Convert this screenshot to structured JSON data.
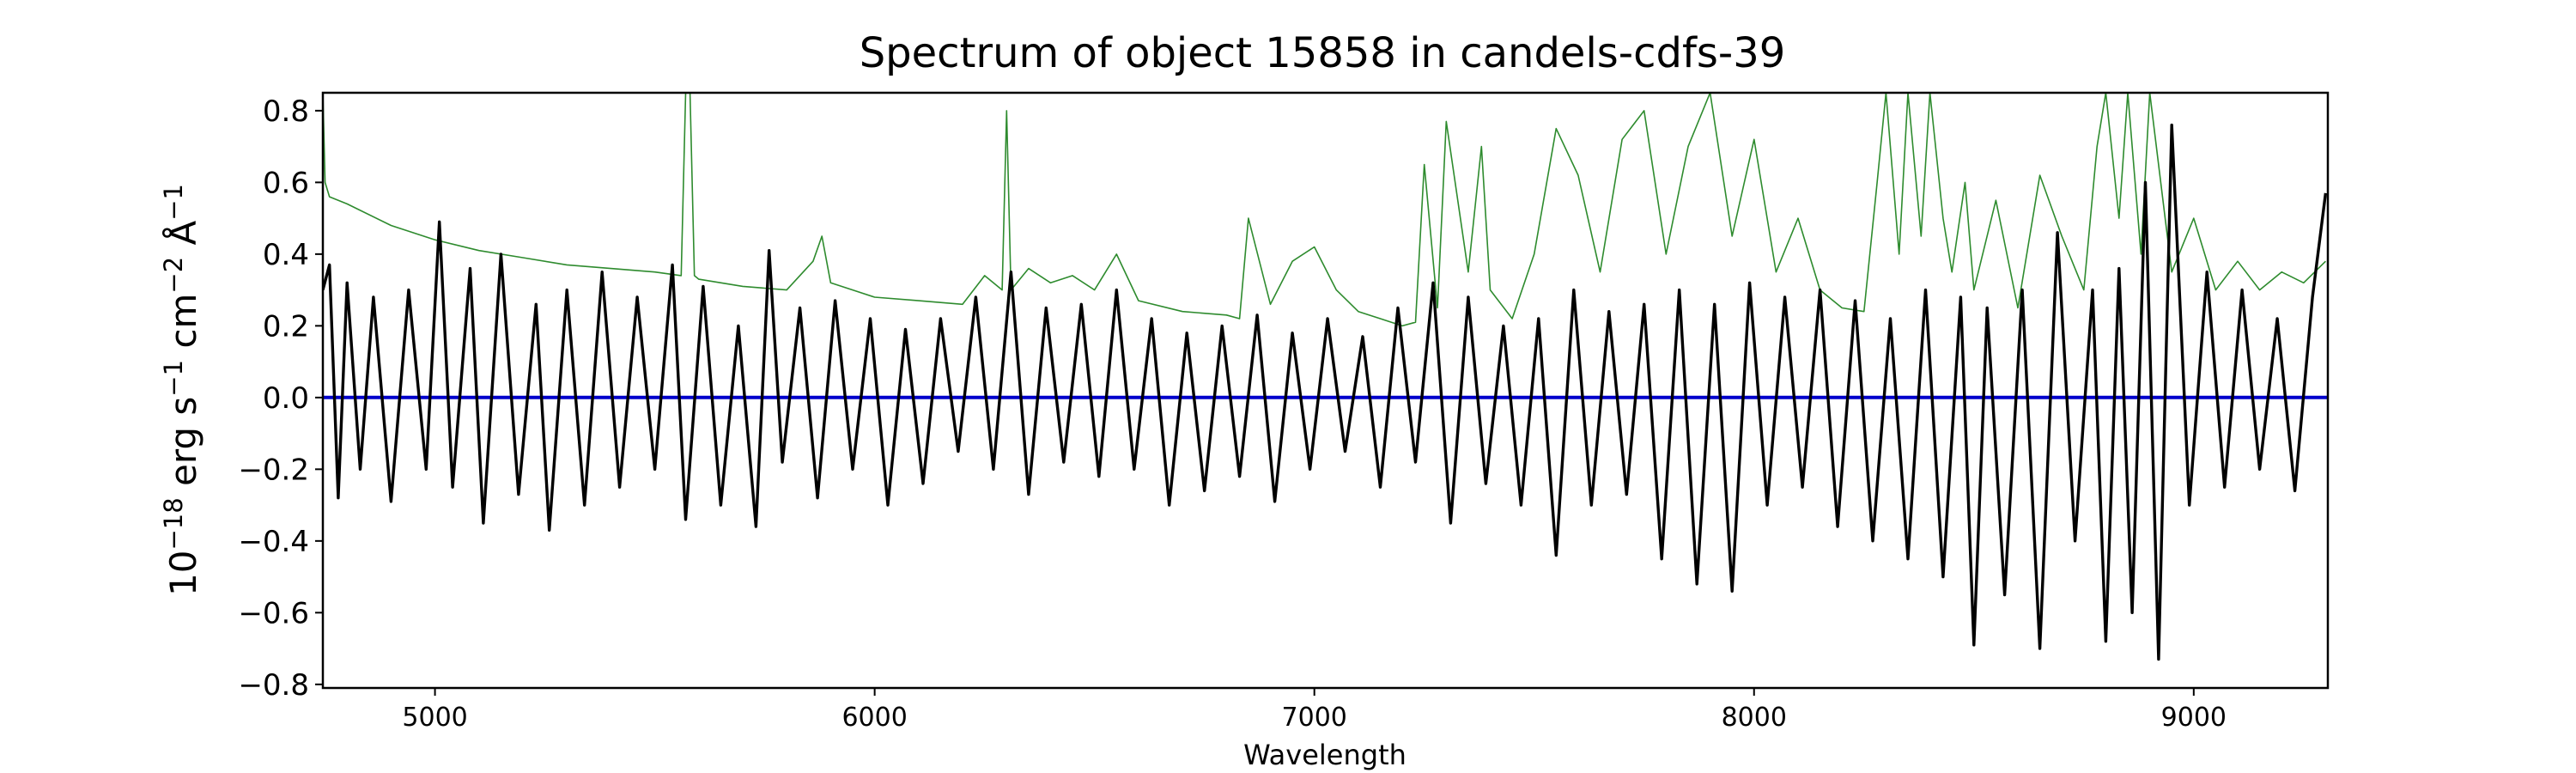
{
  "chart_data": {
    "type": "line",
    "title": "Spectrum of object 15858 in candels-cdfs-39",
    "xlabel": "Wavelength",
    "ylabel_base": "10",
    "ylabel_exp": "−18",
    "ylabel_unit1": " erg s",
    "ylabel_exp1": "−1",
    "ylabel_unit2": " cm",
    "ylabel_exp2": "−2",
    "ylabel_unit3": " Å",
    "ylabel_exp3": "−1",
    "xlim": [
      4745,
      9305
    ],
    "ylim": [
      -0.81,
      0.85
    ],
    "xticks": [
      5000,
      6000,
      7000,
      8000,
      9000
    ],
    "xtick_labels": [
      "5000",
      "6000",
      "7000",
      "8000",
      "9000"
    ],
    "yticks": [
      -0.8,
      -0.6,
      -0.4,
      -0.2,
      0.0,
      0.2,
      0.4,
      0.6,
      0.8
    ],
    "ytick_labels": [
      "−0.8",
      "−0.6",
      "−0.4",
      "−0.2",
      "0.0",
      "0.2",
      "0.4",
      "0.6",
      "0.8"
    ],
    "grid": false,
    "series": [
      {
        "role": "error",
        "color": "#2e8b2e",
        "x": [
          4745,
          4750,
          4760,
          4800,
          4900,
          5000,
          5100,
          5200,
          5300,
          5400,
          5500,
          5560,
          5570,
          5575,
          5580,
          5590,
          5600,
          5700,
          5800,
          5860,
          5880,
          5900,
          5950,
          6000,
          6100,
          6200,
          6250,
          6290,
          6300,
          6310,
          6350,
          6400,
          6450,
          6500,
          6550,
          6600,
          6700,
          6800,
          6830,
          6850,
          6900,
          6950,
          7000,
          7050,
          7100,
          7150,
          7200,
          7230,
          7250,
          7280,
          7300,
          7350,
          7380,
          7400,
          7450,
          7500,
          7550,
          7600,
          7650,
          7700,
          7750,
          7800,
          7850,
          7900,
          7950,
          8000,
          8050,
          8100,
          8150,
          8200,
          8250,
          8280,
          8300,
          8330,
          8350,
          8380,
          8400,
          8430,
          8450,
          8480,
          8500,
          8550,
          8600,
          8650,
          8700,
          8750,
          8780,
          8800,
          8830,
          8850,
          8880,
          8900,
          8950,
          9000,
          9050,
          9100,
          9150,
          9200,
          9250,
          9300
        ],
        "y": [
          0.85,
          0.6,
          0.56,
          0.54,
          0.48,
          0.44,
          0.41,
          0.39,
          0.37,
          0.36,
          0.35,
          0.34,
          0.85,
          0.85,
          0.85,
          0.34,
          0.33,
          0.31,
          0.3,
          0.38,
          0.45,
          0.32,
          0.3,
          0.28,
          0.27,
          0.26,
          0.34,
          0.3,
          0.8,
          0.3,
          0.36,
          0.32,
          0.34,
          0.3,
          0.4,
          0.27,
          0.24,
          0.23,
          0.22,
          0.5,
          0.26,
          0.38,
          0.42,
          0.3,
          0.24,
          0.22,
          0.2,
          0.21,
          0.65,
          0.25,
          0.77,
          0.35,
          0.7,
          0.3,
          0.22,
          0.4,
          0.75,
          0.62,
          0.35,
          0.72,
          0.8,
          0.4,
          0.7,
          0.85,
          0.45,
          0.72,
          0.35,
          0.5,
          0.3,
          0.25,
          0.24,
          0.6,
          0.85,
          0.4,
          0.85,
          0.45,
          0.85,
          0.5,
          0.35,
          0.6,
          0.3,
          0.55,
          0.25,
          0.62,
          0.45,
          0.3,
          0.7,
          0.85,
          0.5,
          0.85,
          0.4,
          0.85,
          0.35,
          0.5,
          0.3,
          0.38,
          0.3,
          0.35,
          0.32,
          0.38
        ]
      },
      {
        "role": "zero",
        "color": "#0000cc",
        "x": [
          4745,
          9305
        ],
        "y": [
          0.0,
          0.0
        ]
      },
      {
        "role": "flux",
        "color": "#000000",
        "x": [
          4745,
          4760,
          4780,
          4800,
          4830,
          4860,
          4900,
          4940,
          4980,
          5010,
          5040,
          5080,
          5110,
          5150,
          5190,
          5230,
          5260,
          5300,
          5340,
          5380,
          5420,
          5460,
          5500,
          5540,
          5570,
          5610,
          5650,
          5690,
          5730,
          5760,
          5790,
          5830,
          5870,
          5910,
          5950,
          5990,
          6030,
          6070,
          6110,
          6150,
          6190,
          6230,
          6270,
          6310,
          6350,
          6390,
          6430,
          6470,
          6510,
          6550,
          6590,
          6630,
          6670,
          6710,
          6750,
          6790,
          6830,
          6870,
          6910,
          6950,
          6990,
          7030,
          7070,
          7110,
          7150,
          7190,
          7230,
          7270,
          7310,
          7350,
          7390,
          7430,
          7470,
          7510,
          7550,
          7590,
          7630,
          7670,
          7710,
          7750,
          7790,
          7830,
          7870,
          7910,
          7950,
          7990,
          8030,
          8070,
          8110,
          8150,
          8190,
          8230,
          8270,
          8310,
          8350,
          8390,
          8430,
          8470,
          8500,
          8530,
          8570,
          8610,
          8650,
          8690,
          8730,
          8770,
          8800,
          8830,
          8860,
          8890,
          8920,
          8950,
          8990,
          9030,
          9070,
          9110,
          9150,
          9190,
          9230,
          9270,
          9300
        ],
        "y": [
          0.3,
          0.37,
          -0.28,
          0.32,
          -0.2,
          0.28,
          -0.29,
          0.3,
          -0.2,
          0.49,
          -0.25,
          0.36,
          -0.35,
          0.4,
          -0.27,
          0.26,
          -0.37,
          0.3,
          -0.3,
          0.35,
          -0.25,
          0.28,
          -0.2,
          0.37,
          -0.34,
          0.31,
          -0.3,
          0.2,
          -0.36,
          0.41,
          -0.18,
          0.25,
          -0.28,
          0.27,
          -0.2,
          0.22,
          -0.3,
          0.19,
          -0.24,
          0.22,
          -0.15,
          0.28,
          -0.2,
          0.35,
          -0.27,
          0.25,
          -0.18,
          0.26,
          -0.22,
          0.3,
          -0.2,
          0.22,
          -0.3,
          0.18,
          -0.26,
          0.2,
          -0.22,
          0.23,
          -0.29,
          0.18,
          -0.2,
          0.22,
          -0.15,
          0.17,
          -0.25,
          0.25,
          -0.18,
          0.32,
          -0.35,
          0.28,
          -0.24,
          0.2,
          -0.3,
          0.22,
          -0.44,
          0.3,
          -0.3,
          0.24,
          -0.27,
          0.26,
          -0.45,
          0.3,
          -0.52,
          0.26,
          -0.54,
          0.32,
          -0.3,
          0.28,
          -0.25,
          0.3,
          -0.36,
          0.27,
          -0.4,
          0.22,
          -0.45,
          0.3,
          -0.5,
          0.28,
          -0.69,
          0.25,
          -0.55,
          0.3,
          -0.7,
          0.46,
          -0.4,
          0.3,
          -0.68,
          0.36,
          -0.6,
          0.6,
          -0.73,
          0.76,
          -0.3,
          0.35,
          -0.25,
          0.3,
          -0.2,
          0.22,
          -0.26,
          0.28,
          0.57
        ]
      }
    ]
  }
}
